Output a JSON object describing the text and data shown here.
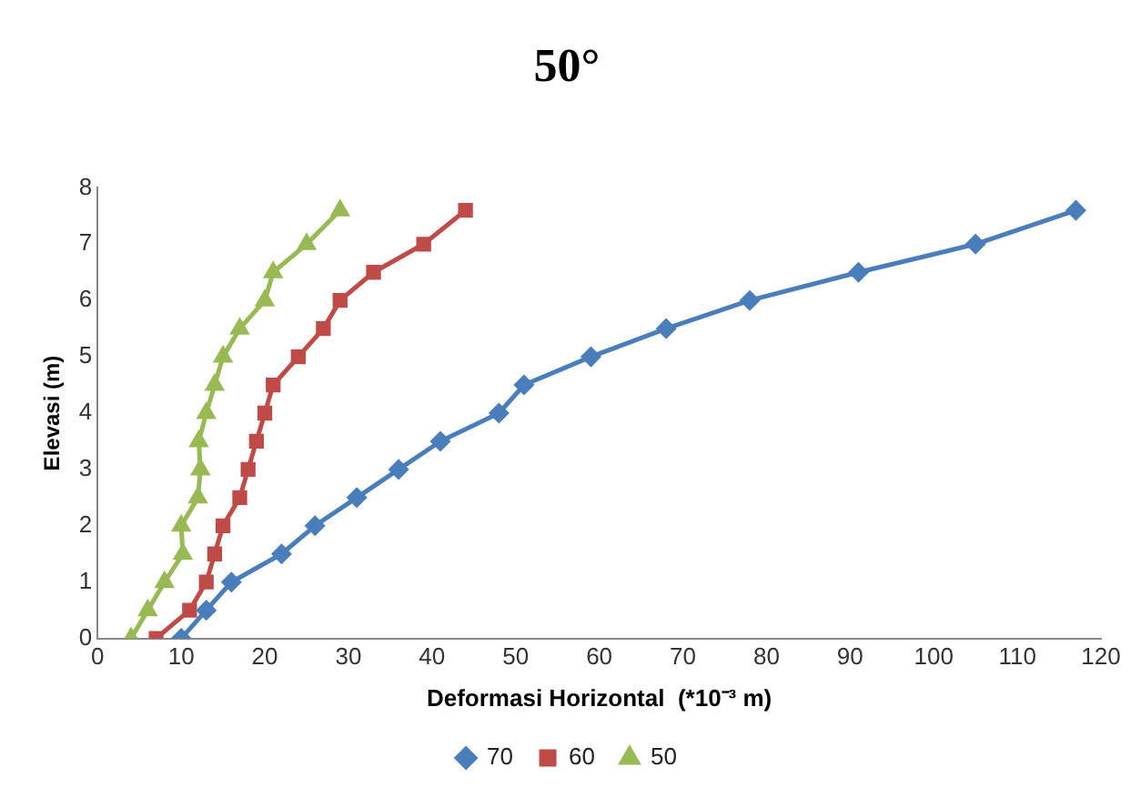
{
  "chart_data": {
    "type": "line",
    "title": "50°",
    "xlabel": "Deformasi Horizontal  (*10⁻³ m)",
    "ylabel": "Elevasi (m)",
    "xlim": [
      0,
      120
    ],
    "xticks": [
      0,
      10,
      20,
      30,
      40,
      50,
      60,
      70,
      80,
      90,
      100,
      110,
      120
    ],
    "ylim": [
      0,
      8
    ],
    "yticks": [
      0,
      1,
      2,
      3,
      4,
      5,
      6,
      7,
      8
    ],
    "grid": false,
    "legend": "bottom",
    "series": [
      {
        "name": "70",
        "color": "#4a7ebb",
        "marker": "diamond",
        "x": [
          10,
          13,
          16,
          22,
          26,
          31,
          36,
          41,
          48,
          51,
          59,
          68,
          78,
          91,
          105,
          117
        ],
        "values": [
          0,
          0.5,
          1,
          1.5,
          2,
          2.5,
          3,
          3.5,
          4,
          4.5,
          5,
          5.5,
          6,
          6.5,
          7,
          7.6
        ]
      },
      {
        "name": "60",
        "color": "#be4b48",
        "marker": "square",
        "x": [
          7,
          11,
          13,
          14,
          15,
          17,
          18,
          19,
          20,
          21,
          24,
          27,
          29,
          33,
          39,
          44
        ],
        "values": [
          0,
          0.5,
          1,
          1.5,
          2,
          2.5,
          3,
          3.5,
          4,
          4.5,
          5,
          5.5,
          6,
          6.5,
          7,
          7.6
        ]
      },
      {
        "name": "50",
        "color": "#98b954",
        "marker": "triangle",
        "x": [
          4,
          6,
          8,
          10.2,
          10,
          12,
          12.3,
          12.1,
          13,
          14,
          15,
          17,
          20,
          21,
          25,
          29
        ],
        "values": [
          0,
          0.5,
          1,
          1.5,
          2,
          2.5,
          3,
          3.5,
          4,
          4.5,
          5,
          5.5,
          6,
          6.5,
          7,
          7.6
        ]
      }
    ]
  }
}
